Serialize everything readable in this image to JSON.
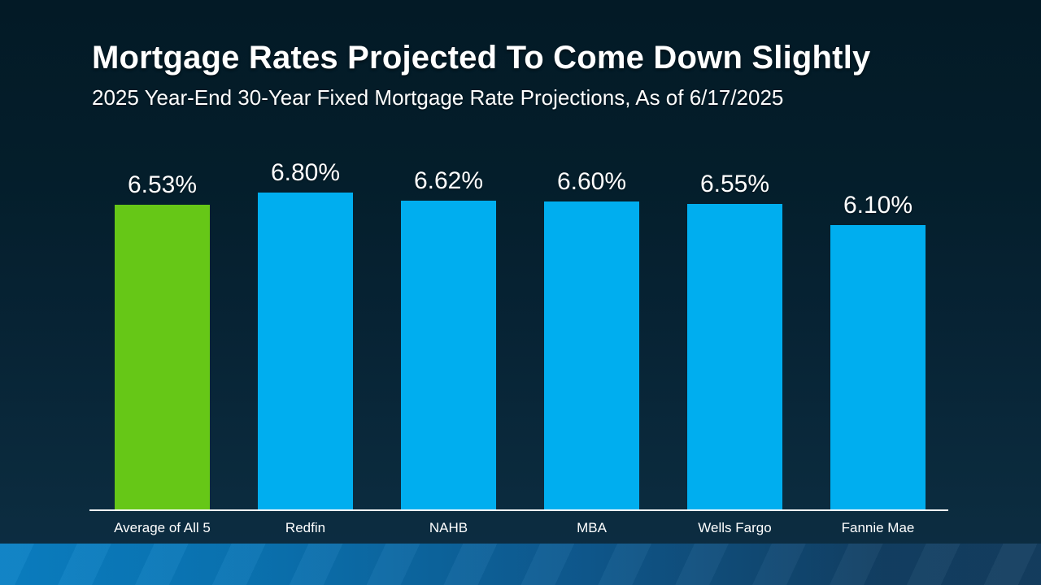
{
  "slide": {
    "title": "Mortgage Rates Projected To Come Down Slightly",
    "subtitle": "2025 Year-End 30-Year Fixed Mortgage Rate Projections, As of 6/17/2025"
  },
  "colors": {
    "background_top": "#031A26",
    "background_bottom": "#0D2E44",
    "bar_blue": "#00AEEF",
    "bar_green": "#66C717",
    "axis_line": "#FFFFFF",
    "text": "#FFFFFF",
    "footer_gradient_left": "#0A80C4",
    "footer_gradient_right": "#143E60"
  },
  "chart_data": {
    "type": "bar",
    "title": "Mortgage Rates Projected To Come Down Slightly",
    "subtitle": "2025 Year-End 30-Year Fixed Mortgage Rate Projections, As of 6/17/2025",
    "categories": [
      "Average of All 5",
      "Redfin",
      "NAHB",
      "MBA",
      "Wells Fargo",
      "Fannie Mae"
    ],
    "values": [
      6.53,
      6.8,
      6.62,
      6.6,
      6.55,
      6.1
    ],
    "value_labels": [
      "6.53%",
      "6.80%",
      "6.62%",
      "6.60%",
      "6.55%",
      "6.10%"
    ],
    "bar_colors": [
      "#66C717",
      "#00AEEF",
      "#00AEEF",
      "#00AEEF",
      "#00AEEF",
      "#00AEEF"
    ],
    "highlighted_category": "Average of All 5",
    "xlabel": "",
    "ylabel": "",
    "ylim": [
      0,
      7
    ],
    "grid": false,
    "legend": false,
    "data_labels_position": "above-bar",
    "baseline_axis": "white horizontal line at bar bottoms"
  }
}
